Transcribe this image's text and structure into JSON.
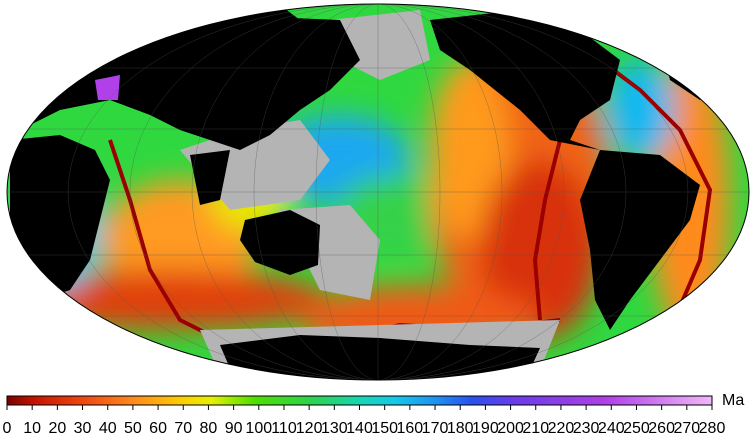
{
  "colorbar": {
    "unit": "Ma",
    "range": [
      0,
      280
    ],
    "ticks": [
      0,
      10,
      20,
      30,
      40,
      50,
      60,
      70,
      80,
      90,
      100,
      110,
      120,
      130,
      140,
      150,
      160,
      170,
      180,
      190,
      200,
      210,
      220,
      230,
      240,
      250,
      260,
      270,
      280
    ]
  }
}
